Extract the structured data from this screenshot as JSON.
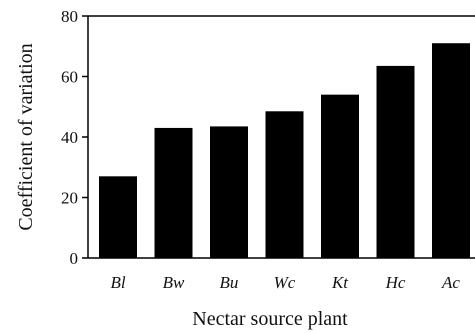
{
  "chart_data": {
    "type": "bar",
    "categories": [
      "Bl",
      "Bw",
      "Bu",
      "Wc",
      "Kt",
      "Hc",
      "Ac"
    ],
    "values": [
      27,
      43,
      43.5,
      48.5,
      54,
      63.5,
      71
    ],
    "xlabel": "Nectar source plant",
    "ylabel": "Coefficient of variation",
    "ylim": [
      0,
      80
    ],
    "yticks": [
      0,
      20,
      40,
      60,
      80
    ],
    "bar_color": "#000000",
    "grid": false
  }
}
